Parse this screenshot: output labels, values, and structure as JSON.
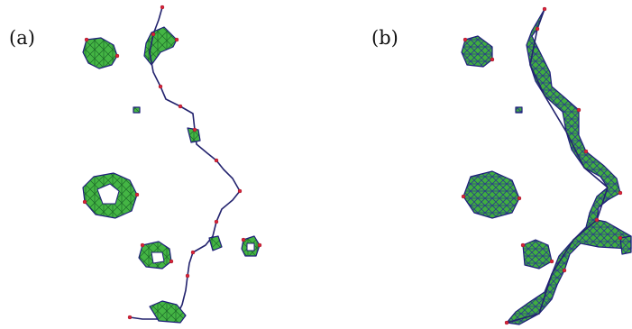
{
  "panels": [
    {
      "label": "(a)"
    },
    {
      "label": "(b)"
    }
  ],
  "colors": {
    "mesh_fill": "#3fb43f",
    "mesh_dark": "#2a7a2a",
    "edge": "#1f1f7a",
    "vertex": "#d9233a"
  }
}
